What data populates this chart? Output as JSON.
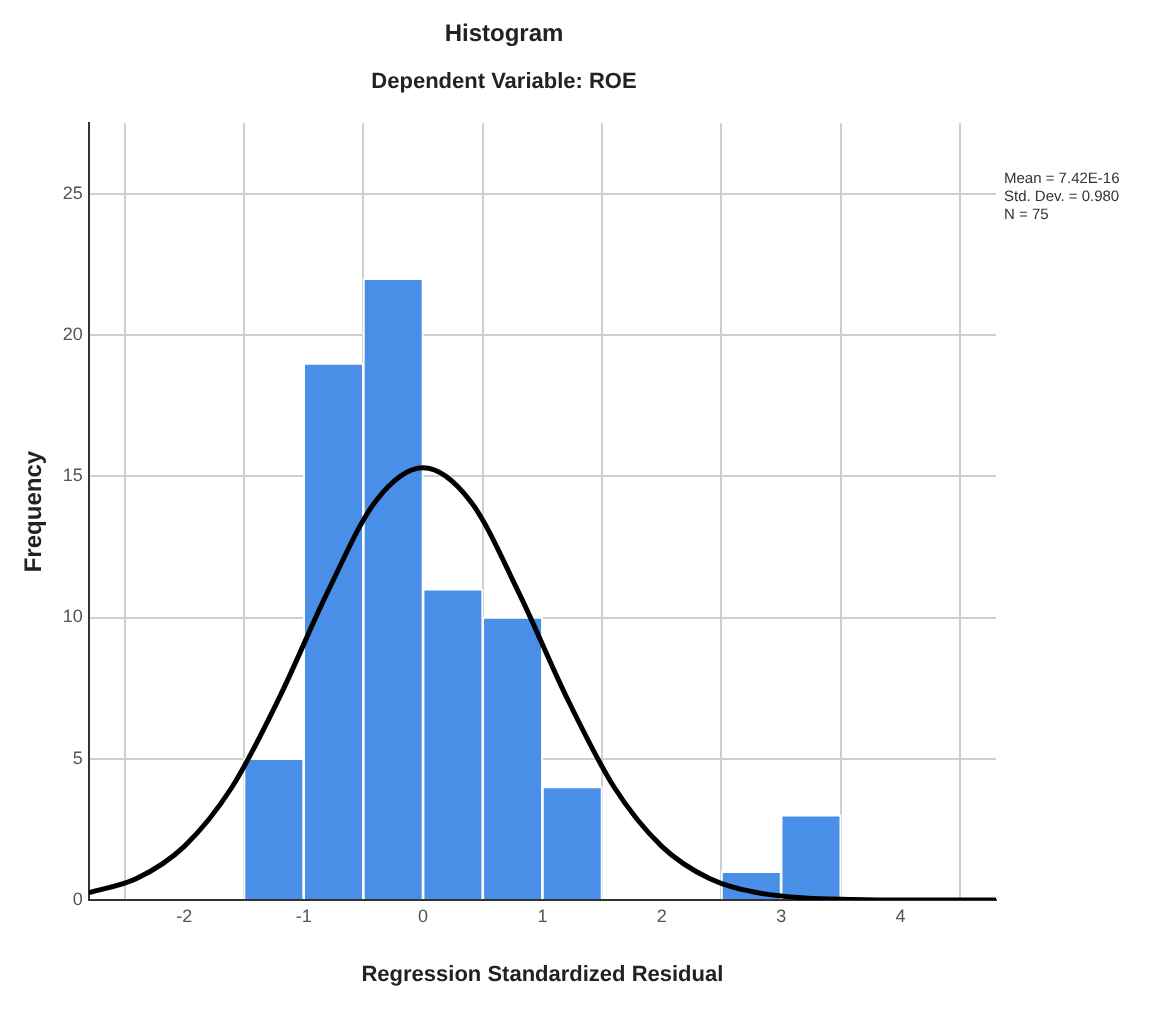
{
  "chart_data": {
    "type": "histogram",
    "title": "Histogram",
    "subtitle": "Dependent Variable: ROE",
    "xlabel": "Regression Standardized Residual",
    "ylabel": "Frequency",
    "bins": [
      -1.5,
      -1,
      -0.5,
      0,
      0.5,
      1,
      1.5,
      2,
      2.5,
      3,
      3.5
    ],
    "values": [
      5,
      19,
      22,
      11,
      10,
      4,
      0,
      0,
      1,
      3
    ],
    "color": "#4a8fe7",
    "series": [
      {
        "type": "line",
        "color": "#000000",
        "x": [
          -2.8,
          -2.4,
          -2,
          -1.6,
          -1.2,
          -0.8,
          -0.4,
          0,
          0.4,
          0.8,
          1.2,
          1.6,
          2,
          2.4,
          2.8,
          3.2,
          3.6,
          4,
          4.8
        ],
        "values": [
          0.26,
          0.76,
          1.9,
          4,
          7.2,
          10.9,
          14.1,
          15.3,
          14.1,
          10.9,
          7.2,
          4,
          1.9,
          0.76,
          0.26,
          0.07,
          0.02,
          0,
          0
        ]
      }
    ],
    "marker": "none",
    "xlim": [
      -2.8,
      4.8
    ],
    "xticks": [
      -2,
      -1,
      0,
      1,
      2,
      3,
      4
    ],
    "ylim": [
      0,
      27.5
    ],
    "yticks": [
      0,
      5,
      10,
      15,
      20,
      25
    ],
    "grid": true,
    "annotations": [
      "Mean = 7.42E-16",
      "Std. Dev. = 0.980",
      "N = 75"
    ]
  }
}
